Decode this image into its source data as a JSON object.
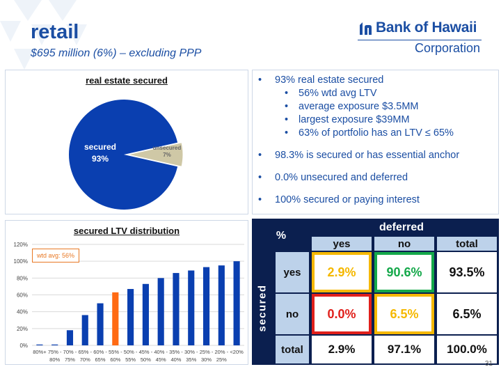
{
  "header": {
    "title": "retail",
    "subtitle": "$695 million (6%) – excluding PPP"
  },
  "logo": {
    "name": "Bank of Hawaii",
    "corp": "Corporation"
  },
  "pie": {
    "title": "real estate secured",
    "secured_label": "secured",
    "secured_pct": "93%",
    "unsecured_label": "unsecured",
    "unsecured_pct": "7%"
  },
  "bullets": {
    "b1": "93% real estate secured",
    "s1": "56% wtd avg LTV",
    "s2": "average exposure $3.5MM",
    "s3": "largest exposure $39MM",
    "s4": "63% of portfolio has an LTV ≤ 65%",
    "b2": "98.3% is secured or has essential anchor",
    "b3": "0.0% unsecured and deferred",
    "b4": "100% secured or paying interest"
  },
  "ltv": {
    "title": "secured LTV distribution",
    "wtd_label": "wtd avg: 56%"
  },
  "matrix": {
    "pct": "%",
    "deferred": "deferred",
    "secured": "secured",
    "col_yes": "yes",
    "col_no": "no",
    "col_total": "total",
    "row_yes": "yes",
    "row_no": "no",
    "row_total": "total",
    "yes_yes": "2.9%",
    "yes_no": "90.6%",
    "yes_total": "93.5%",
    "no_yes": "0.0%",
    "no_no": "6.5%",
    "no_total": "6.5%",
    "total_yes": "2.9%",
    "total_no": "97.1%",
    "total_total": "100.0%"
  },
  "page_number": "31",
  "colors": {
    "brand": "#1b4ea3",
    "bar": "#0a3fb0",
    "highlight_bar": "#ff6a13",
    "pie_secured": "#0a3fb0",
    "pie_unsecured": "#cfc8a6",
    "gold": "#f5b800",
    "green": "#14a84a",
    "red": "#e0201b",
    "matrix_bg": "#0b1f4f",
    "matrix_header": "#bdd2ea"
  },
  "chart_data": [
    {
      "type": "pie",
      "title": "real estate secured",
      "labels": [
        "secured",
        "unsecured"
      ],
      "values": [
        93,
        7
      ]
    },
    {
      "type": "bar",
      "title": "secured LTV distribution",
      "categories": [
        "80%+",
        "75% - 80%",
        "70% - 75%",
        "65% - 70%",
        "60% - 65%",
        "55% - 60%",
        "50% - 55%",
        "45% - 50%",
        "40% - 45%",
        "35% - 40%",
        "30% - 35%",
        "25% - 30%",
        "20% - 25%",
        "<20%"
      ],
      "categories_line1": [
        "80%+",
        "75% -",
        "70% -",
        "65% -",
        "60% -",
        "55% -",
        "50% -",
        "45% -",
        "40% -",
        "35% -",
        "30% -",
        "25% -",
        "20% -",
        "<20%"
      ],
      "categories_line2": [
        "",
        "80%",
        "75%",
        "70%",
        "65%",
        "60%",
        "55%",
        "50%",
        "45%",
        "40%",
        "35%",
        "30%",
        "25%",
        ""
      ],
      "values": [
        1,
        1,
        18,
        36,
        50,
        63,
        67,
        73,
        80,
        86,
        89,
        93,
        95,
        100
      ],
      "highlight_index": 5,
      "y_ticks": [
        "0%",
        "20%",
        "40%",
        "60%",
        "80%",
        "100%",
        "120%"
      ],
      "ylim": [
        0,
        120
      ],
      "annotation": "wtd avg: 56%"
    }
  ]
}
